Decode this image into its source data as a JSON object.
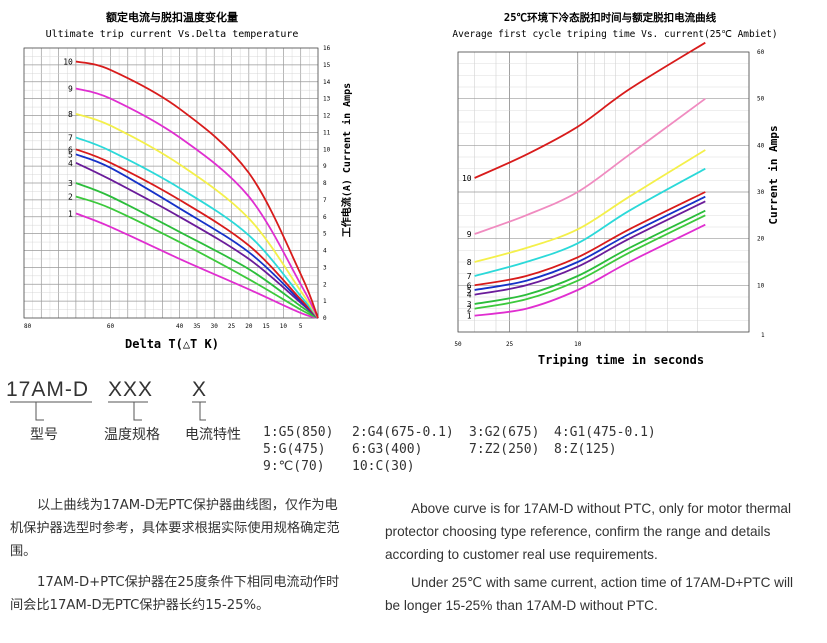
{
  "chart_data": [
    {
      "type": "line",
      "title": "额定电流与脱扣温度变化量",
      "subtitle": "Ultimate trip current Vs.Delta temperature",
      "xlabel": "Delta T(△T K)",
      "ylabel": "工作电流(A) Current in Amps",
      "x_ticks": [
        "60",
        "40",
        "35",
        "30",
        "25",
        "20",
        "15",
        "10",
        "5"
      ],
      "x_axis_end_label": "80",
      "y_ticks": [
        "0",
        "1",
        "2",
        "3",
        "4",
        "5",
        "6",
        "7",
        "8",
        "9",
        "10",
        "11",
        "12",
        "13",
        "14",
        "15",
        "16"
      ],
      "xlim": [
        85,
        0
      ],
      "ylim": [
        0,
        16
      ],
      "grid": true,
      "series": [
        {
          "name": "1",
          "color": "#e02ed0",
          "points": [
            [
              70,
              6.2
            ],
            [
              60,
              5.4
            ],
            [
              40,
              3.5
            ],
            [
              20,
              1.7
            ],
            [
              5,
              0.3
            ],
            [
              0,
              0
            ]
          ]
        },
        {
          "name": "2",
          "color": "#3cc93c",
          "points": [
            [
              70,
              7.2
            ],
            [
              60,
              6.5
            ],
            [
              40,
              4.5
            ],
            [
              20,
              2.3
            ],
            [
              5,
              0.5
            ],
            [
              0,
              0
            ]
          ]
        },
        {
          "name": "3",
          "color": "#2bbd3b",
          "points": [
            [
              70,
              8.0
            ],
            [
              60,
              7.2
            ],
            [
              40,
              5.1
            ],
            [
              20,
              2.9
            ],
            [
              5,
              0.7
            ],
            [
              0,
              0
            ]
          ]
        },
        {
          "name": "4",
          "color": "#6a1b9a",
          "points": [
            [
              70,
              9.2
            ],
            [
              60,
              8.2
            ],
            [
              40,
              6.0
            ],
            [
              20,
              3.5
            ],
            [
              5,
              0.9
            ],
            [
              0,
              0
            ]
          ]
        },
        {
          "name": "5",
          "color": "#1531c8",
          "points": [
            [
              70,
              9.7
            ],
            [
              60,
              8.9
            ],
            [
              40,
              6.5
            ],
            [
              20,
              3.9
            ],
            [
              5,
              1.0
            ],
            [
              0,
              0
            ]
          ]
        },
        {
          "name": "6",
          "color": "#d81b1b",
          "points": [
            [
              70,
              10.0
            ],
            [
              60,
              9.2
            ],
            [
              40,
              7.0
            ],
            [
              20,
              4.3
            ],
            [
              5,
              1.1
            ],
            [
              0,
              0
            ]
          ]
        },
        {
          "name": "7",
          "color": "#2bd9d9",
          "points": [
            [
              70,
              10.7
            ],
            [
              60,
              9.9
            ],
            [
              40,
              7.7
            ],
            [
              20,
              4.9
            ],
            [
              5,
              1.3
            ],
            [
              0,
              0
            ]
          ]
        },
        {
          "name": "8",
          "color": "#f4f04a",
          "points": [
            [
              70,
              12.1
            ],
            [
              60,
              11.4
            ],
            [
              40,
              9.1
            ],
            [
              20,
              5.9
            ],
            [
              5,
              1.6
            ],
            [
              0,
              0
            ]
          ]
        },
        {
          "name": "9",
          "color": "#e02ed0",
          "points": [
            [
              70,
              13.6
            ],
            [
              60,
              13.0
            ],
            [
              40,
              10.7
            ],
            [
              20,
              7.2
            ],
            [
              5,
              2.0
            ],
            [
              0,
              0
            ]
          ]
        },
        {
          "name": "10",
          "color": "#d81b1b",
          "points": [
            [
              70,
              15.2
            ],
            [
              60,
              14.7
            ],
            [
              40,
              12.4
            ],
            [
              20,
              8.6
            ],
            [
              5,
              2.6
            ],
            [
              0,
              0
            ]
          ]
        }
      ]
    },
    {
      "type": "line",
      "title": "25℃环境下冷态脱扣时间与额定脱扣电流曲线",
      "subtitle": "Average first cycle triping time Vs. current(25℃ Ambiet)",
      "xlabel": "Triping time in seconds",
      "ylabel": "Current in Amps",
      "x_ticks": [
        "50",
        "25",
        "10"
      ],
      "x_axis_end_label": "1",
      "y_ticks": [
        "10",
        "20",
        "30",
        "40",
        "50",
        "60"
      ],
      "xlim": [
        50,
        1
      ],
      "ylim": [
        0,
        60
      ],
      "grid": true,
      "series": [
        {
          "name": "1",
          "color": "#e02ed0",
          "points": [
            [
              40,
              3.5
            ],
            [
              20,
              5
            ],
            [
              10,
              9
            ],
            [
              5,
              15
            ],
            [
              1.8,
              23
            ]
          ]
        },
        {
          "name": "2",
          "color": "#3cc93c",
          "points": [
            [
              40,
              5
            ],
            [
              20,
              7
            ],
            [
              10,
              11
            ],
            [
              5,
              17
            ],
            [
              1.8,
              25
            ]
          ]
        },
        {
          "name": "3",
          "color": "#2bbd3b",
          "points": [
            [
              40,
              6
            ],
            [
              20,
              8
            ],
            [
              10,
              12
            ],
            [
              5,
              18
            ],
            [
              1.8,
              26
            ]
          ]
        },
        {
          "name": "4",
          "color": "#6a1b9a",
          "points": [
            [
              40,
              8
            ],
            [
              20,
              10
            ],
            [
              10,
              14
            ],
            [
              5,
              20
            ],
            [
              1.8,
              28
            ]
          ]
        },
        {
          "name": "5",
          "color": "#1531c8",
          "points": [
            [
              40,
              9
            ],
            [
              20,
              11
            ],
            [
              10,
              15
            ],
            [
              5,
              21
            ],
            [
              1.8,
              29
            ]
          ]
        },
        {
          "name": "6",
          "color": "#d81b1b",
          "points": [
            [
              40,
              10
            ],
            [
              20,
              12
            ],
            [
              10,
              16
            ],
            [
              5,
              22
            ],
            [
              1.8,
              30
            ]
          ]
        },
        {
          "name": "7",
          "color": "#2bd9d9",
          "points": [
            [
              40,
              12
            ],
            [
              20,
              15
            ],
            [
              10,
              19
            ],
            [
              5,
              26
            ],
            [
              1.8,
              35
            ]
          ]
        },
        {
          "name": "8",
          "color": "#f4f04a",
          "points": [
            [
              40,
              15
            ],
            [
              20,
              18
            ],
            [
              10,
              22
            ],
            [
              5,
              29
            ],
            [
              1.8,
              39
            ]
          ]
        },
        {
          "name": "9",
          "color": "#f08bc0",
          "points": [
            [
              40,
              21
            ],
            [
              20,
              25
            ],
            [
              10,
              30
            ],
            [
              5,
              38
            ],
            [
              1.8,
              50
            ]
          ]
        },
        {
          "name": "10",
          "color": "#d81b1b",
          "points": [
            [
              40,
              33
            ],
            [
              20,
              38
            ],
            [
              10,
              44
            ],
            [
              5,
              52
            ],
            [
              1.8,
              62
            ]
          ]
        }
      ]
    }
  ],
  "model": {
    "code_parts": [
      "17AM-D",
      "XXX",
      "X"
    ],
    "labels": [
      "型号",
      "温度规格",
      "电流特性"
    ]
  },
  "legend": [
    "1:G5(850)",
    "2:G4(675-0.1)",
    "3:G2(675)",
    "4:G1(475-0.1)",
    "5:G(475)",
    "6:G3(400)",
    "7:Z2(250)",
    "8:Z(125)",
    "9:℃(70)",
    "10:C(30)"
  ],
  "text_cn": {
    "p1": "以上曲线为17AM-D无PTC保护器曲线图，仅作为电机保护器选型时参考，具体要求根据实际使用规格确定范围。",
    "p2": "17AM-D+PTC保护器在25度条件下相同电流动作时间会比17AM-D无PTC保护器长约15-25%。"
  },
  "text_en": {
    "p1": "Above curve is for 17AM-D without PTC, only for motor thermal protector choosing type reference, confirm the range and details according to customer real use requirements.",
    "p2": "Under 25℃ with same current, action time of 17AM-D+PTC will be longer 15-25% than 17AM-D without PTC."
  }
}
